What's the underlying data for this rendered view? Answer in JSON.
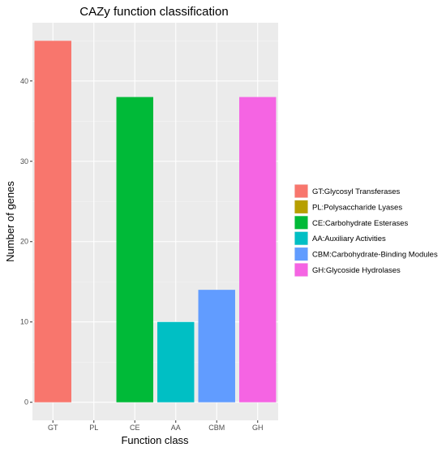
{
  "chart_data": {
    "type": "bar",
    "title": "CAZy function classification",
    "xlabel": "Function class",
    "ylabel": "Number of genes",
    "categories": [
      "GT",
      "PL",
      "CE",
      "AA",
      "CBM",
      "GH"
    ],
    "values": [
      45,
      0,
      38,
      10,
      14,
      38
    ],
    "colors": [
      "#F8766D",
      "#B79F00",
      "#00BA38",
      "#00BFC4",
      "#619CFF",
      "#F564E3"
    ],
    "yticks": [
      0,
      10,
      20,
      30,
      40
    ],
    "ylim": [
      -2.25,
      47.25
    ],
    "grid": true,
    "panel_background": "#EBEBEB",
    "legend_position": "right",
    "legend": [
      {
        "label": "GT:Glycosyl Transferases",
        "color": "#F8766D"
      },
      {
        "label": "PL:Polysaccharide Lyases",
        "color": "#B79F00"
      },
      {
        "label": "CE:Carbohydrate Esterases",
        "color": "#00BA38"
      },
      {
        "label": "AA:Auxiliary Activities",
        "color": "#00BFC4"
      },
      {
        "label": "CBM:Carbohydrate-Binding Modules",
        "color": "#619CFF"
      },
      {
        "label": "GH:Glycoside Hydrolases",
        "color": "#F564E3"
      }
    ]
  }
}
